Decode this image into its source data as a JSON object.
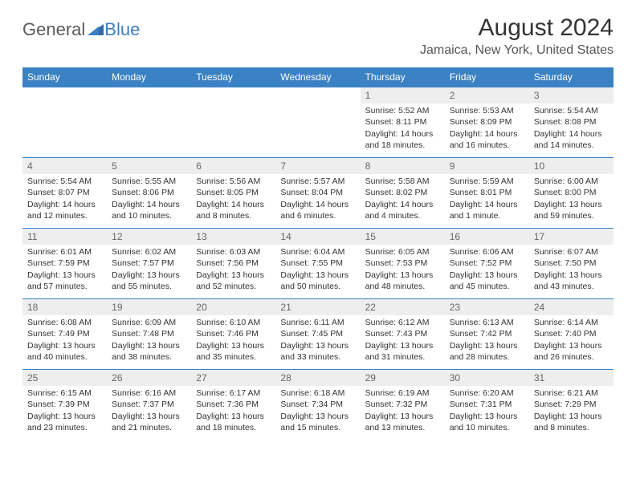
{
  "brand": {
    "part1": "General",
    "part2": "Blue"
  },
  "title": "August 2024",
  "location": "Jamaica, New York, United States",
  "colors": {
    "header_bg": "#3b82c4",
    "header_text": "#ffffff",
    "daynum_bg": "#eeeeee",
    "border": "#3b82c4",
    "text": "#333333",
    "brand_grey": "#5a5a5a",
    "brand_blue": "#3b7fc4"
  },
  "dow": [
    "Sunday",
    "Monday",
    "Tuesday",
    "Wednesday",
    "Thursday",
    "Friday",
    "Saturday"
  ],
  "weeks": [
    [
      null,
      null,
      null,
      null,
      {
        "n": "1",
        "sr": "5:52 AM",
        "ss": "8:11 PM",
        "dh": 14,
        "dm": 18
      },
      {
        "n": "2",
        "sr": "5:53 AM",
        "ss": "8:09 PM",
        "dh": 14,
        "dm": 16
      },
      {
        "n": "3",
        "sr": "5:54 AM",
        "ss": "8:08 PM",
        "dh": 14,
        "dm": 14
      }
    ],
    [
      {
        "n": "4",
        "sr": "5:54 AM",
        "ss": "8:07 PM",
        "dh": 14,
        "dm": 12
      },
      {
        "n": "5",
        "sr": "5:55 AM",
        "ss": "8:06 PM",
        "dh": 14,
        "dm": 10
      },
      {
        "n": "6",
        "sr": "5:56 AM",
        "ss": "8:05 PM",
        "dh": 14,
        "dm": 8
      },
      {
        "n": "7",
        "sr": "5:57 AM",
        "ss": "8:04 PM",
        "dh": 14,
        "dm": 6
      },
      {
        "n": "8",
        "sr": "5:58 AM",
        "ss": "8:02 PM",
        "dh": 14,
        "dm": 4
      },
      {
        "n": "9",
        "sr": "5:59 AM",
        "ss": "8:01 PM",
        "dh": 14,
        "dm": 1
      },
      {
        "n": "10",
        "sr": "6:00 AM",
        "ss": "8:00 PM",
        "dh": 13,
        "dm": 59
      }
    ],
    [
      {
        "n": "11",
        "sr": "6:01 AM",
        "ss": "7:59 PM",
        "dh": 13,
        "dm": 57
      },
      {
        "n": "12",
        "sr": "6:02 AM",
        "ss": "7:57 PM",
        "dh": 13,
        "dm": 55
      },
      {
        "n": "13",
        "sr": "6:03 AM",
        "ss": "7:56 PM",
        "dh": 13,
        "dm": 52
      },
      {
        "n": "14",
        "sr": "6:04 AM",
        "ss": "7:55 PM",
        "dh": 13,
        "dm": 50
      },
      {
        "n": "15",
        "sr": "6:05 AM",
        "ss": "7:53 PM",
        "dh": 13,
        "dm": 48
      },
      {
        "n": "16",
        "sr": "6:06 AM",
        "ss": "7:52 PM",
        "dh": 13,
        "dm": 45
      },
      {
        "n": "17",
        "sr": "6:07 AM",
        "ss": "7:50 PM",
        "dh": 13,
        "dm": 43
      }
    ],
    [
      {
        "n": "18",
        "sr": "6:08 AM",
        "ss": "7:49 PM",
        "dh": 13,
        "dm": 40
      },
      {
        "n": "19",
        "sr": "6:09 AM",
        "ss": "7:48 PM",
        "dh": 13,
        "dm": 38
      },
      {
        "n": "20",
        "sr": "6:10 AM",
        "ss": "7:46 PM",
        "dh": 13,
        "dm": 35
      },
      {
        "n": "21",
        "sr": "6:11 AM",
        "ss": "7:45 PM",
        "dh": 13,
        "dm": 33
      },
      {
        "n": "22",
        "sr": "6:12 AM",
        "ss": "7:43 PM",
        "dh": 13,
        "dm": 31
      },
      {
        "n": "23",
        "sr": "6:13 AM",
        "ss": "7:42 PM",
        "dh": 13,
        "dm": 28
      },
      {
        "n": "24",
        "sr": "6:14 AM",
        "ss": "7:40 PM",
        "dh": 13,
        "dm": 26
      }
    ],
    [
      {
        "n": "25",
        "sr": "6:15 AM",
        "ss": "7:39 PM",
        "dh": 13,
        "dm": 23
      },
      {
        "n": "26",
        "sr": "6:16 AM",
        "ss": "7:37 PM",
        "dh": 13,
        "dm": 21
      },
      {
        "n": "27",
        "sr": "6:17 AM",
        "ss": "7:36 PM",
        "dh": 13,
        "dm": 18
      },
      {
        "n": "28",
        "sr": "6:18 AM",
        "ss": "7:34 PM",
        "dh": 13,
        "dm": 15
      },
      {
        "n": "29",
        "sr": "6:19 AM",
        "ss": "7:32 PM",
        "dh": 13,
        "dm": 13
      },
      {
        "n": "30",
        "sr": "6:20 AM",
        "ss": "7:31 PM",
        "dh": 13,
        "dm": 10
      },
      {
        "n": "31",
        "sr": "6:21 AM",
        "ss": "7:29 PM",
        "dh": 13,
        "dm": 8
      }
    ]
  ]
}
